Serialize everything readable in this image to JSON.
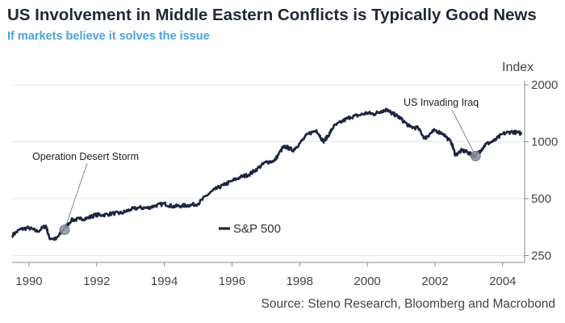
{
  "title": "US Involvement in Middle Eastern Conflicts is Typically Good News",
  "subtitle": "If markets believe it solves the issue",
  "source": "Source: Steno Research, Bloomberg and Macrobond",
  "colors": {
    "line": "#1c2541",
    "marker": "#8a93a3",
    "subtitle": "#4aa3d9",
    "grid": "#e6e6e6"
  },
  "chart_data": {
    "type": "line",
    "title": "US Involvement in Middle Eastern Conflicts is Typically Good News",
    "subtitle": "If markets believe it solves the issue",
    "ylabel": "Index",
    "yscale": "log",
    "ylim": [
      230,
      2100
    ],
    "xlim": [
      1989.5,
      2004.65
    ],
    "yticks": [
      250,
      500,
      1000,
      2000
    ],
    "ytick_labels": [
      "250",
      "500",
      "1000",
      "2000"
    ],
    "xticks": [
      1990,
      1992,
      1994,
      1996,
      1998,
      2000,
      2002,
      2004
    ],
    "xtick_labels": [
      "1990",
      "1992",
      "1994",
      "1996",
      "1998",
      "2000",
      "2002",
      "2004"
    ],
    "grid": "horizontal",
    "legend": "S&P 500",
    "series": [
      {
        "name": "S&P 500",
        "x": [
          1989.5,
          1989.75,
          1990.0,
          1990.25,
          1990.5,
          1990.6,
          1990.8,
          1991.0,
          1991.25,
          1991.5,
          1991.75,
          1991.95,
          1992.2,
          1992.5,
          1992.75,
          1993.0,
          1993.25,
          1993.5,
          1993.75,
          1994.0,
          1994.25,
          1994.5,
          1994.75,
          1995.0,
          1995.25,
          1995.5,
          1995.75,
          1996.0,
          1996.25,
          1996.5,
          1996.75,
          1997.0,
          1997.25,
          1997.5,
          1997.6,
          1997.8,
          1998.0,
          1998.25,
          1998.5,
          1998.7,
          1998.85,
          1999.0,
          1999.25,
          1999.5,
          1999.75,
          2000.0,
          2000.2,
          2000.4,
          2000.6,
          2000.7,
          2000.85,
          2001.0,
          2001.25,
          2001.5,
          2001.7,
          2001.85,
          2002.0,
          2002.25,
          2002.5,
          2002.6,
          2002.8,
          2002.95,
          2003.1,
          2003.2,
          2003.35,
          2003.5,
          2003.75,
          2004.0,
          2004.25,
          2004.5,
          2004.55
        ],
        "values": [
          320,
          345,
          350,
          335,
          360,
          310,
          305,
          340,
          385,
          390,
          395,
          410,
          410,
          418,
          420,
          438,
          448,
          446,
          460,
          470,
          455,
          458,
          462,
          470,
          520,
          560,
          590,
          620,
          650,
          670,
          720,
          780,
          790,
          930,
          940,
          900,
          980,
          1100,
          1150,
          1000,
          1080,
          1200,
          1280,
          1350,
          1380,
          1420,
          1400,
          1450,
          1480,
          1420,
          1380,
          1320,
          1200,
          1180,
          1040,
          1100,
          1150,
          1100,
          980,
          850,
          900,
          880,
          850,
          840,
          900,
          970,
          1010,
          1100,
          1130,
          1110,
          1115
        ]
      }
    ],
    "annotations": [
      {
        "text": "Operation Desert Storm",
        "x": 1991.05,
        "y": 342
      },
      {
        "text": "US Invading Iraq",
        "x": 2003.2,
        "y": 840
      }
    ]
  }
}
